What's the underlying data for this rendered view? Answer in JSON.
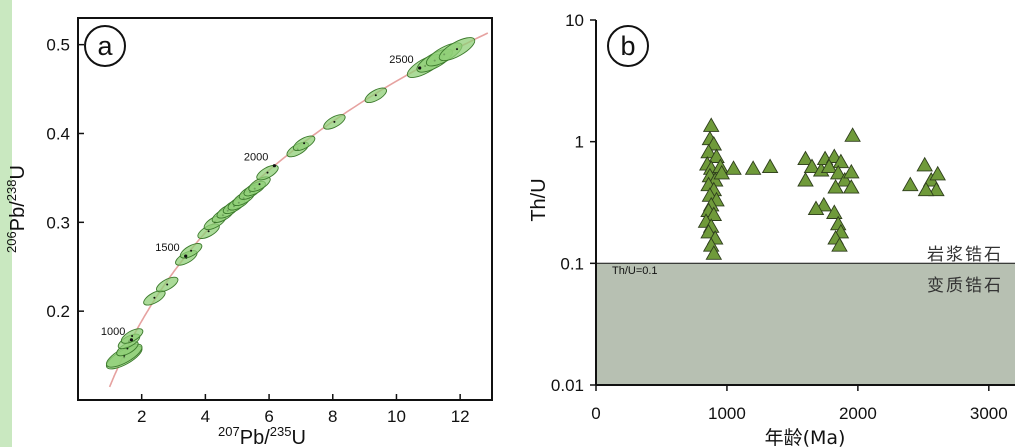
{
  "chart_data": [
    {
      "type": "scatter",
      "panel_label": "a",
      "xlabel_parts": {
        "sup1": "207",
        "base1": "Pb/",
        "sup2": "235",
        "base2": "U"
      },
      "ylabel_parts": {
        "sup1": "206",
        "base1": "Pb/",
        "sup2": "238",
        "base2": "U"
      },
      "xlim": [
        0,
        13
      ],
      "ylim": [
        0.1,
        0.53
      ],
      "x_ticks": [
        2,
        4,
        6,
        8,
        10,
        12
      ],
      "y_ticks": [
        0.2,
        0.3,
        0.4,
        0.5
      ],
      "x_tick_labels": [
        "2",
        "4",
        "6",
        "8",
        "10",
        "12"
      ],
      "y_tick_labels": [
        "0.2",
        "0.3",
        "0.4",
        "0.5"
      ],
      "concordia_ages": [
        "1000",
        "1500",
        "2000",
        "2500"
      ],
      "concordia_color": "#e6a2a0",
      "ellipse_fill": "#8fcf77",
      "ellipse_stroke": "#3c7a2c",
      "points": [
        {
          "x": 1.45,
          "y": 0.148
        },
        {
          "x": 1.45,
          "y": 0.15
        },
        {
          "x": 1.55,
          "y": 0.158
        },
        {
          "x": 1.6,
          "y": 0.166
        },
        {
          "x": 1.7,
          "y": 0.172
        },
        {
          "x": 2.4,
          "y": 0.215
        },
        {
          "x": 2.8,
          "y": 0.23
        },
        {
          "x": 3.4,
          "y": 0.26
        },
        {
          "x": 3.55,
          "y": 0.268
        },
        {
          "x": 4.1,
          "y": 0.29
        },
        {
          "x": 4.3,
          "y": 0.3
        },
        {
          "x": 4.55,
          "y": 0.308
        },
        {
          "x": 4.7,
          "y": 0.313
        },
        {
          "x": 4.9,
          "y": 0.318
        },
        {
          "x": 5.05,
          "y": 0.322
        },
        {
          "x": 5.2,
          "y": 0.327
        },
        {
          "x": 5.4,
          "y": 0.334
        },
        {
          "x": 5.55,
          "y": 0.338
        },
        {
          "x": 5.7,
          "y": 0.343
        },
        {
          "x": 5.95,
          "y": 0.356
        },
        {
          "x": 6.9,
          "y": 0.382
        },
        {
          "x": 7.1,
          "y": 0.389
        },
        {
          "x": 8.05,
          "y": 0.413
        },
        {
          "x": 9.35,
          "y": 0.443
        },
        {
          "x": 10.9,
          "y": 0.476
        },
        {
          "x": 11.2,
          "y": 0.482
        },
        {
          "x": 11.5,
          "y": 0.489
        },
        {
          "x": 11.9,
          "y": 0.495
        }
      ]
    },
    {
      "type": "scatter",
      "panel_label": "b",
      "xlabel": "年龄(Ma)",
      "ylabel": "Th/U",
      "y_scale": "log",
      "xlim": [
        0,
        3200
      ],
      "ylim": [
        0.01,
        10
      ],
      "x_ticks": [
        0,
        1000,
        2000,
        3000
      ],
      "y_ticks": [
        0.01,
        0.1,
        1,
        10
      ],
      "x_tick_labels": [
        "0",
        "1000",
        "2000",
        "3000"
      ],
      "y_tick_labels": [
        "0.01",
        "0.1",
        "1",
        "10"
      ],
      "threshold": {
        "value": 0.1,
        "label": "Th/U=0.1"
      },
      "region_labels": {
        "upper": "岩浆锆石",
        "lower": "变质锆石"
      },
      "shaded_color": "#b7c0b2",
      "marker_fill": "#6f9a3a",
      "marker_stroke": "#2e3d1c",
      "points": [
        {
          "x": 880,
          "y": 1.35
        },
        {
          "x": 870,
          "y": 1.05
        },
        {
          "x": 900,
          "y": 0.95
        },
        {
          "x": 860,
          "y": 0.82
        },
        {
          "x": 920,
          "y": 0.75
        },
        {
          "x": 850,
          "y": 0.65
        },
        {
          "x": 880,
          "y": 0.6
        },
        {
          "x": 950,
          "y": 0.62
        },
        {
          "x": 1050,
          "y": 0.6
        },
        {
          "x": 870,
          "y": 0.52
        },
        {
          "x": 910,
          "y": 0.48
        },
        {
          "x": 860,
          "y": 0.44
        },
        {
          "x": 900,
          "y": 0.4
        },
        {
          "x": 870,
          "y": 0.36
        },
        {
          "x": 920,
          "y": 0.33
        },
        {
          "x": 880,
          "y": 0.3
        },
        {
          "x": 860,
          "y": 0.27
        },
        {
          "x": 900,
          "y": 0.25
        },
        {
          "x": 840,
          "y": 0.22
        },
        {
          "x": 880,
          "y": 0.2
        },
        {
          "x": 860,
          "y": 0.18
        },
        {
          "x": 910,
          "y": 0.16
        },
        {
          "x": 880,
          "y": 0.14
        },
        {
          "x": 900,
          "y": 0.12
        },
        {
          "x": 960,
          "y": 0.55
        },
        {
          "x": 1200,
          "y": 0.6
        },
        {
          "x": 1330,
          "y": 0.62
        },
        {
          "x": 1600,
          "y": 0.72
        },
        {
          "x": 1650,
          "y": 0.62
        },
        {
          "x": 1600,
          "y": 0.48
        },
        {
          "x": 1720,
          "y": 0.58
        },
        {
          "x": 1750,
          "y": 0.72
        },
        {
          "x": 1820,
          "y": 0.75
        },
        {
          "x": 1870,
          "y": 0.68
        },
        {
          "x": 1780,
          "y": 0.62
        },
        {
          "x": 1850,
          "y": 0.55
        },
        {
          "x": 1900,
          "y": 0.48
        },
        {
          "x": 1830,
          "y": 0.42
        },
        {
          "x": 1740,
          "y": 0.3
        },
        {
          "x": 1680,
          "y": 0.28
        },
        {
          "x": 1820,
          "y": 0.26
        },
        {
          "x": 1850,
          "y": 0.21
        },
        {
          "x": 1870,
          "y": 0.18
        },
        {
          "x": 1830,
          "y": 0.16
        },
        {
          "x": 1860,
          "y": 0.14
        },
        {
          "x": 1960,
          "y": 1.12
        },
        {
          "x": 1950,
          "y": 0.56
        },
        {
          "x": 1950,
          "y": 0.42
        },
        {
          "x": 2400,
          "y": 0.44
        },
        {
          "x": 2510,
          "y": 0.64
        },
        {
          "x": 2560,
          "y": 0.48
        },
        {
          "x": 2610,
          "y": 0.54
        },
        {
          "x": 2600,
          "y": 0.4
        },
        {
          "x": 2520,
          "y": 0.4
        }
      ]
    }
  ]
}
